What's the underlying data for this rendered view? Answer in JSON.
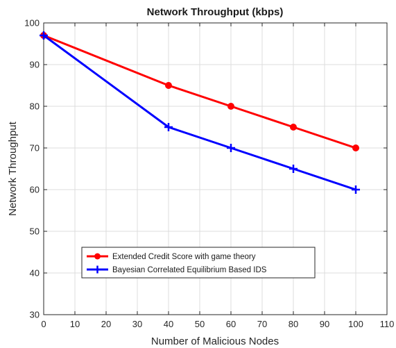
{
  "chart_data": {
    "type": "line",
    "title": "Network Throughput (kbps)",
    "xlabel": "Number of Malicious Nodes",
    "ylabel": "Network Throughput",
    "xlim": [
      0,
      110
    ],
    "ylim": [
      30,
      100
    ],
    "xticks": [
      0,
      10,
      20,
      30,
      40,
      50,
      60,
      70,
      80,
      90,
      100,
      110
    ],
    "yticks": [
      30,
      40,
      50,
      60,
      70,
      80,
      90,
      100
    ],
    "grid": true,
    "legend_position": "bottom-left",
    "x": [
      0,
      40,
      60,
      80,
      100
    ],
    "series": [
      {
        "name": "Extended Credit Score with game theory",
        "values": [
          97,
          85,
          80,
          75,
          70
        ],
        "color": "#ff0000",
        "marker": "circle"
      },
      {
        "name": "Bayesian Correlated Equilibrium Based IDS",
        "values": [
          97,
          75,
          70,
          65,
          60
        ],
        "color": "#0000ff",
        "marker": "plus"
      }
    ]
  }
}
